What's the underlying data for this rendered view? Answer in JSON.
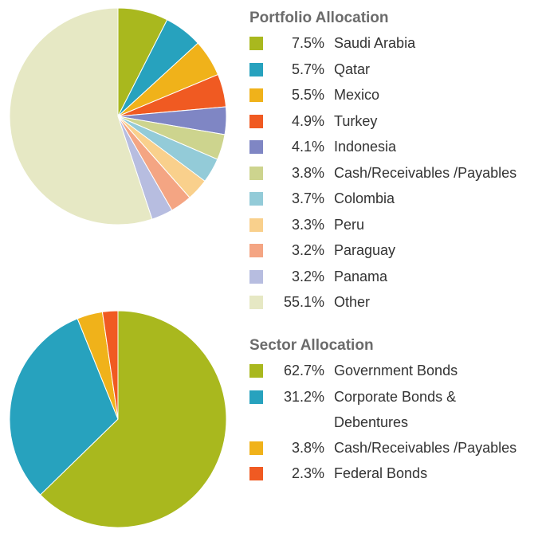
{
  "chart_data": [
    {
      "type": "pie",
      "title": "Portfolio Allocation",
      "categories": [
        "Saudi Arabia",
        "Qatar",
        "Mexico",
        "Turkey",
        "Indonesia",
        "Cash/Receivables /Payables",
        "Colombia",
        "Peru",
        "Paraguay",
        "Panama",
        "Other"
      ],
      "values": [
        7.5,
        5.7,
        5.5,
        4.9,
        4.1,
        3.8,
        3.7,
        3.3,
        3.2,
        3.2,
        55.1
      ],
      "value_labels": [
        "7.5%",
        "5.7%",
        "5.5%",
        "4.9%",
        "4.1%",
        "3.8%",
        "3.7%",
        "3.3%",
        "3.2%",
        "3.2%",
        "55.1%"
      ],
      "colors": [
        "#a9b81e",
        "#27a2be",
        "#f0b21a",
        "#f05a22",
        "#7f86c4",
        "#cdd48e",
        "#93cbd8",
        "#f9d08c",
        "#f4a583",
        "#b7bde0",
        "#e6e8c4"
      ]
    },
    {
      "type": "pie",
      "title": "Sector Allocation",
      "categories": [
        "Government Bonds",
        "Corporate Bonds & Debentures",
        "Cash/Receivables /Payables",
        "Federal Bonds"
      ],
      "values": [
        62.7,
        31.2,
        3.8,
        2.3
      ],
      "value_labels": [
        "62.7%",
        "31.2%",
        "3.8%",
        "2.3%"
      ],
      "colors": [
        "#a9b81e",
        "#27a2be",
        "#f0b21a",
        "#f05a22"
      ]
    }
  ]
}
